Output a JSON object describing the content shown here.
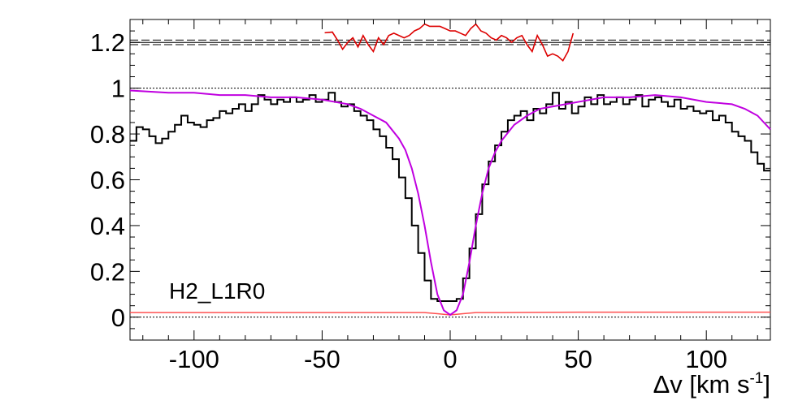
{
  "chart_data": {
    "type": "line",
    "annotation": "H2_L1R0",
    "xlabel": "Δv [km s",
    "xlabel_sup": "-1",
    "xlabel_tail": "]",
    "ylabel": "",
    "xlim": [
      -125,
      125
    ],
    "ylim": [
      -0.1,
      1.3
    ],
    "x_ticks": [
      -100,
      -50,
      0,
      50,
      100
    ],
    "x_tick_labels": [
      "-100",
      "-50",
      "0",
      "50",
      "100"
    ],
    "y_ticks": [
      0,
      0.2,
      0.4,
      0.6,
      0.8,
      1,
      1.2
    ],
    "y_tick_labels": [
      "0",
      "0.2",
      "0.4",
      "0.6",
      "0.8",
      "1",
      "1.2"
    ],
    "reference_lines": [
      {
        "y": 1.0,
        "style": "dotted"
      },
      {
        "y": 0.0,
        "style": "dotted"
      },
      {
        "y": 1.2,
        "style": "solid"
      },
      {
        "y": 1.21,
        "style": "dashed"
      },
      {
        "y": 1.19,
        "style": "dashed"
      }
    ],
    "colors": {
      "data": "#000000",
      "model": "#c000e0",
      "error": "#ff5050",
      "residual": "#dd0000"
    },
    "data_step": {
      "x": [
        -125,
        -122.5,
        -120,
        -117.5,
        -115,
        -112.5,
        -110,
        -107.5,
        -105,
        -102.5,
        -100,
        -97.5,
        -95,
        -92.5,
        -90,
        -87.5,
        -85,
        -82.5,
        -80,
        -77.5,
        -75,
        -72.5,
        -70,
        -67.5,
        -65,
        -62.5,
        -60,
        -57.5,
        -55,
        -52.5,
        -50,
        -47.5,
        -45,
        -42.5,
        -40,
        -37.5,
        -35,
        -32.5,
        -30,
        -27.5,
        -25,
        -22.5,
        -20,
        -17.5,
        -15,
        -12.5,
        -10,
        -7.5,
        -5,
        -2.5,
        0,
        2.5,
        5,
        7.5,
        10,
        12.5,
        15,
        17.5,
        20,
        22.5,
        25,
        27.5,
        30,
        32.5,
        35,
        37.5,
        40,
        42.5,
        45,
        47.5,
        50,
        52.5,
        55,
        57.5,
        60,
        62.5,
        65,
        67.5,
        70,
        72.5,
        75,
        77.5,
        80,
        82.5,
        85,
        87.5,
        90,
        92.5,
        95,
        97.5,
        100,
        102.5,
        105,
        107.5,
        110,
        112.5,
        115,
        117.5,
        120,
        122.5
      ],
      "y": [
        0.77,
        0.83,
        0.82,
        0.79,
        0.76,
        0.78,
        0.81,
        0.84,
        0.88,
        0.85,
        0.84,
        0.83,
        0.86,
        0.87,
        0.9,
        0.89,
        0.91,
        0.93,
        0.9,
        0.93,
        0.97,
        0.95,
        0.93,
        0.95,
        0.94,
        0.96,
        0.94,
        0.95,
        0.97,
        0.94,
        0.95,
        0.98,
        0.94,
        0.92,
        0.93,
        0.9,
        0.88,
        0.86,
        0.82,
        0.79,
        0.74,
        0.69,
        0.61,
        0.52,
        0.4,
        0.28,
        0.16,
        0.08,
        0.07,
        0.07,
        0.07,
        0.08,
        0.17,
        0.3,
        0.45,
        0.58,
        0.68,
        0.75,
        0.81,
        0.86,
        0.88,
        0.9,
        0.86,
        0.91,
        0.89,
        0.93,
        0.98,
        0.91,
        0.94,
        0.89,
        0.92,
        0.96,
        0.93,
        0.97,
        0.93,
        0.94,
        0.96,
        0.93,
        0.95,
        0.97,
        0.92,
        0.95,
        0.96,
        0.94,
        0.92,
        0.95,
        0.91,
        0.92,
        0.9,
        0.89,
        0.9,
        0.86,
        0.88,
        0.85,
        0.81,
        0.79,
        0.77,
        0.72,
        0.67,
        0.64
      ]
    },
    "model": {
      "x": [
        -125,
        -110,
        -100,
        -90,
        -80,
        -70,
        -60,
        -50,
        -45,
        -40,
        -35,
        -30,
        -25,
        -20,
        -17.5,
        -15,
        -12.5,
        -10,
        -7.5,
        -5,
        -2.5,
        0,
        2.5,
        5,
        7.5,
        10,
        12.5,
        15,
        17.5,
        20,
        25,
        30,
        35,
        40,
        50,
        60,
        70,
        80,
        90,
        100,
        110,
        115,
        120,
        125
      ],
      "y": [
        0.99,
        0.98,
        0.98,
        0.97,
        0.97,
        0.96,
        0.96,
        0.95,
        0.94,
        0.93,
        0.91,
        0.88,
        0.85,
        0.78,
        0.73,
        0.65,
        0.54,
        0.4,
        0.24,
        0.1,
        0.03,
        0.01,
        0.03,
        0.1,
        0.24,
        0.4,
        0.54,
        0.65,
        0.72,
        0.77,
        0.84,
        0.88,
        0.91,
        0.92,
        0.94,
        0.96,
        0.96,
        0.97,
        0.96,
        0.94,
        0.93,
        0.91,
        0.88,
        0.82
      ]
    },
    "error": {
      "x": [
        -125,
        -50,
        -10,
        -5,
        0,
        5,
        10,
        20,
        50,
        125
      ],
      "y": [
        0.02,
        0.02,
        0.02,
        0.015,
        0.01,
        0.015,
        0.02,
        0.02,
        0.022,
        0.022
      ]
    },
    "residual": {
      "x": [
        -49,
        -46,
        -44,
        -42,
        -40,
        -38,
        -36,
        -34,
        -32,
        -30,
        -28,
        -26,
        -24,
        -22,
        -20,
        -18,
        -16,
        -14,
        -12,
        -10,
        -8,
        -6,
        -4,
        -2,
        0,
        2,
        4,
        6,
        8,
        10,
        12,
        14,
        16,
        18,
        20,
        22,
        24,
        26,
        28,
        30,
        32,
        34,
        36,
        38,
        40,
        42,
        44,
        46,
        48
      ],
      "y": [
        1.242,
        1.245,
        1.21,
        1.17,
        1.2,
        1.22,
        1.18,
        1.23,
        1.19,
        1.16,
        1.22,
        1.19,
        1.23,
        1.24,
        1.23,
        1.22,
        1.23,
        1.25,
        1.26,
        1.28,
        1.27,
        1.27,
        1.27,
        1.26,
        1.25,
        1.25,
        1.24,
        1.23,
        1.26,
        1.28,
        1.25,
        1.24,
        1.22,
        1.21,
        1.23,
        1.22,
        1.2,
        1.22,
        1.23,
        1.19,
        1.16,
        1.23,
        1.19,
        1.14,
        1.15,
        1.14,
        1.12,
        1.16,
        1.24
      ]
    }
  }
}
